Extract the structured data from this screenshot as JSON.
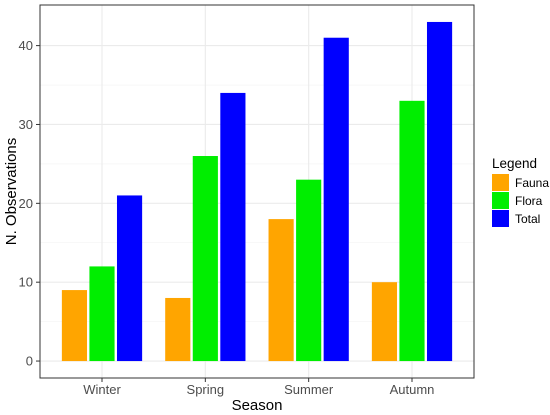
{
  "chart_data": {
    "type": "bar",
    "title": "",
    "xlabel": "Season",
    "ylabel": "N. Observations",
    "categories": [
      "Winter",
      "Spring",
      "Summer",
      "Autumn"
    ],
    "series": [
      {
        "name": "Fauna",
        "color": "#FFA500",
        "values": [
          9,
          8,
          18,
          10
        ]
      },
      {
        "name": "Flora",
        "color": "#00EE00",
        "values": [
          12,
          26,
          23,
          33
        ]
      },
      {
        "name": "Total",
        "color": "#0000FF",
        "values": [
          21,
          34,
          41,
          43
        ]
      }
    ],
    "ylim": [
      -2.15,
      45.15
    ],
    "yticks": [
      0,
      10,
      20,
      30,
      40
    ],
    "grid": true,
    "legend": {
      "title": "Legend",
      "position": "right"
    }
  }
}
